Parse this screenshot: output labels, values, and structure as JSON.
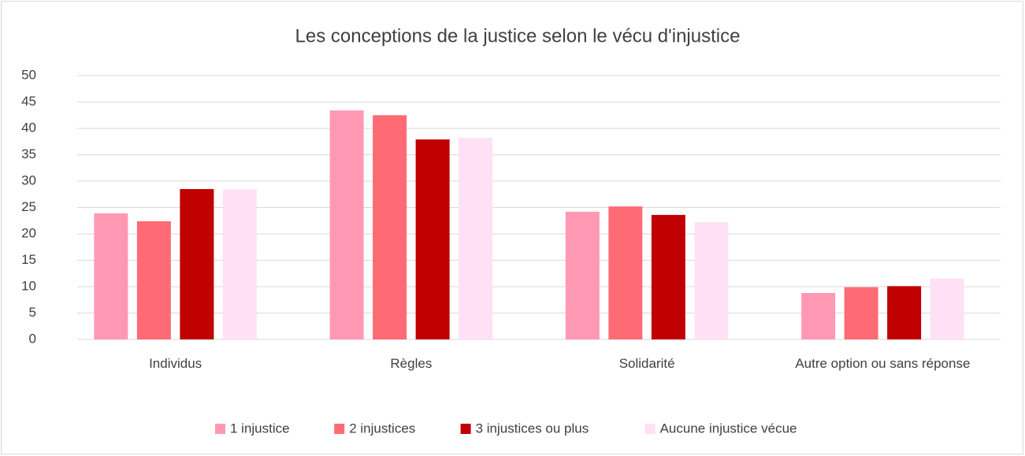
{
  "chart_data": {
    "type": "bar",
    "title": "Les conceptions de la justice selon le vécu d'injustice",
    "categories": [
      "Individus",
      "Règles",
      "Solidarité",
      "Autre option ou sans réponse"
    ],
    "series": [
      {
        "name": "1 injustice",
        "color": "#ff99b3",
        "values": [
          23.9,
          43.4,
          24.2,
          8.8
        ]
      },
      {
        "name": "2 injustices",
        "color": "#ff6b75",
        "values": [
          22.4,
          42.5,
          25.2,
          9.9
        ]
      },
      {
        "name": "3 injustices ou plus",
        "color": "#c00000",
        "values": [
          28.5,
          37.9,
          23.6,
          10.1
        ]
      },
      {
        "name": "Aucune injustice vécue",
        "color": "#ffe0f5",
        "values": [
          28.4,
          38.2,
          22.2,
          11.5
        ]
      }
    ],
    "ylim": [
      0,
      50
    ],
    "yticks": [
      0,
      5,
      10,
      15,
      20,
      25,
      30,
      35,
      40,
      45,
      50
    ],
    "grid": true,
    "legend": "bottom"
  }
}
